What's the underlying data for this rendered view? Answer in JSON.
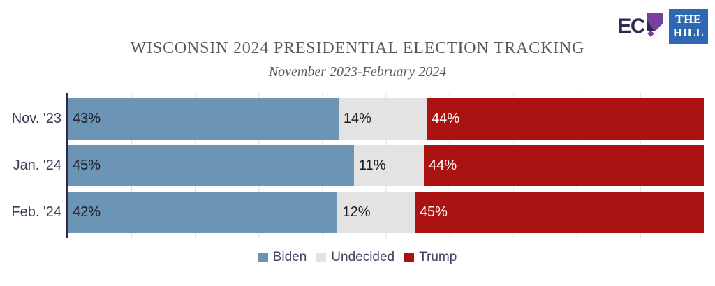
{
  "header": {
    "title": "WISCONSIN 2024 PRESIDENTIAL ELECTION TRACKING",
    "subtitle": "November 2023-February 2024",
    "logos": {
      "ecp_text": "EC",
      "hill_line1": "THE",
      "hill_line2": "HILL"
    }
  },
  "chart_data": {
    "type": "bar",
    "orientation": "horizontal",
    "stacked": true,
    "normalized_to_full_width": true,
    "categories": [
      "Nov. '23",
      "Jan. '24",
      "Feb. '24"
    ],
    "series": [
      {
        "name": "Biden",
        "color": "#6b94b5",
        "label_color": "#1c1c26",
        "values": [
          43,
          45,
          42
        ]
      },
      {
        "name": "Undecided",
        "color": "#e3e3e3",
        "label_color": "#1c1c26",
        "values": [
          14,
          11,
          12
        ]
      },
      {
        "name": "Trump",
        "color": "#ab1212",
        "label_color": "#ffffff",
        "values": [
          44,
          44,
          45
        ]
      }
    ],
    "value_suffix": "%",
    "xlim": [
      0,
      100
    ],
    "gridlines_every_percent": 10,
    "grid_on": true,
    "legend_position": "bottom",
    "title": "WISCONSIN 2024 PRESIDENTIAL ELECTION TRACKING",
    "xlabel": "",
    "ylabel": ""
  },
  "colors": {
    "axis_line": "#2e2950",
    "gridline": "#dedede",
    "title_text": "#595959",
    "category_text": "#3e3857",
    "legend_text": "#474060",
    "ecp_navy": "#2e2a54",
    "ecp_purple": "#7b3f9d",
    "hill_blue": "#2e68b2"
  }
}
